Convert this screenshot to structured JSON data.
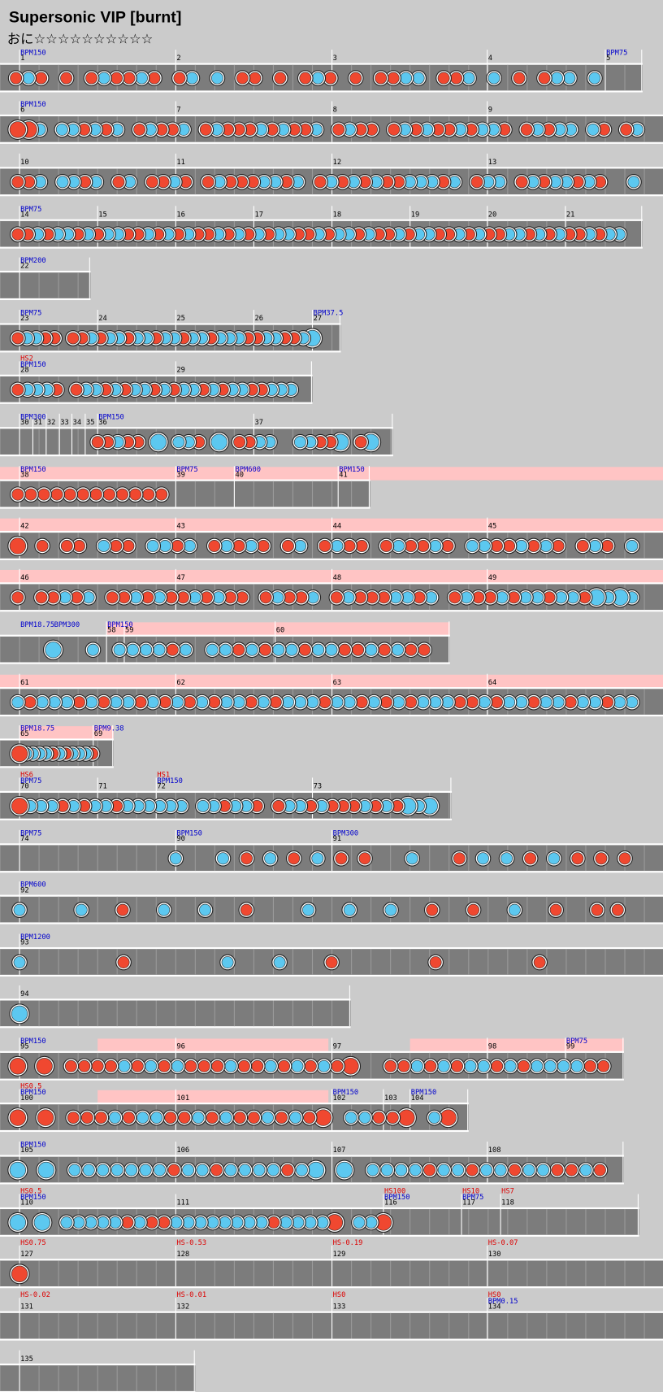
{
  "header": {
    "title": "Supersonic VIP [burnt]",
    "difficulty": "おに",
    "stars": "☆☆☆☆☆☆☆☆☆☆"
  },
  "rows": [
    {
      "measures": [
        "1",
        "2",
        "3",
        "4",
        "5"
      ],
      "bpm": [
        "BPM150",
        "BPM75"
      ],
      "hs": []
    },
    {
      "measures": [
        "6",
        "7",
        "8",
        "9"
      ],
      "bpm": [
        "BPM150"
      ],
      "hs": []
    },
    {
      "measures": [
        "10",
        "11",
        "12",
        "13"
      ],
      "bpm": [],
      "hs": []
    },
    {
      "measures": [
        "14",
        "15",
        "16",
        "17",
        "18",
        "19",
        "20",
        "21"
      ],
      "bpm": [
        "BPM75"
      ],
      "hs": []
    },
    {
      "measures": [
        "22"
      ],
      "bpm": [
        "BPM200"
      ],
      "hs": []
    },
    {
      "measures": [
        "23",
        "24",
        "25",
        "26",
        "27"
      ],
      "bpm": [
        "BPM75",
        "BPM37.5"
      ],
      "hs": []
    },
    {
      "measures": [
        "28",
        "29"
      ],
      "bpm": [
        "BPM150"
      ],
      "hs": [
        "HS2"
      ]
    },
    {
      "measures": [
        "30",
        "31",
        "32",
        "33",
        "34",
        "35",
        "36",
        "37"
      ],
      "bpm": [
        "BPM300",
        "BPM150"
      ],
      "hs": []
    },
    {
      "measures": [
        "38",
        "39",
        "40",
        "41"
      ],
      "bpm": [
        "BPM150",
        "BPM75",
        "BPM600",
        "BPM150"
      ],
      "hs": []
    },
    {
      "measures": [
        "42",
        "43",
        "44",
        "45"
      ],
      "bpm": [],
      "hs": []
    },
    {
      "measures": [
        "46",
        "47",
        "48",
        "49"
      ],
      "bpm": [],
      "hs": []
    },
    {
      "measures": [
        "58",
        "59",
        "60"
      ],
      "bpm": [
        "BPM18.75",
        "BPM300",
        "BPM150"
      ],
      "hs": []
    },
    {
      "measures": [
        "61",
        "62",
        "63",
        "64"
      ],
      "bpm": [],
      "hs": []
    },
    {
      "measures": [
        "65",
        "69"
      ],
      "bpm": [
        "BPM18.75",
        "BPM9.38"
      ],
      "hs": []
    },
    {
      "measures": [
        "70",
        "71",
        "72",
        "73"
      ],
      "bpm": [
        "BPM75",
        "BPM150"
      ],
      "hs": [
        "HS6",
        "HS1"
      ]
    },
    {
      "measures": [
        "74",
        "90",
        "91"
      ],
      "bpm": [
        "BPM75",
        "BPM150",
        "BPM300"
      ],
      "hs": []
    },
    {
      "measures": [
        "92"
      ],
      "bpm": [
        "BPM600"
      ],
      "hs": []
    },
    {
      "measures": [
        "93"
      ],
      "bpm": [
        "BPM1200"
      ],
      "hs": []
    },
    {
      "measures": [
        "94"
      ],
      "bpm": [],
      "hs": []
    },
    {
      "measures": [
        "95",
        "96",
        "97",
        "98",
        "99"
      ],
      "bpm": [
        "BPM150",
        "BPM75"
      ],
      "hs": []
    },
    {
      "measures": [
        "100",
        "101",
        "102",
        "103",
        "104"
      ],
      "bpm": [
        "BPM150",
        "BPM150",
        "BPM150"
      ],
      "hs": [
        "HS0.5"
      ]
    },
    {
      "measures": [
        "105",
        "106",
        "107",
        "108"
      ],
      "bpm": [
        "BPM150"
      ],
      "hs": []
    },
    {
      "measures": [
        "110",
        "111",
        "116",
        "117",
        "118"
      ],
      "bpm": [
        "BPM150",
        "BPM150",
        "BPM75"
      ],
      "hs": [
        "HS0.5",
        "HS100",
        "HS10",
        "HS7"
      ]
    },
    {
      "measures": [
        "127",
        "128",
        "129",
        "130"
      ],
      "bpm": [],
      "hs": [
        "HS0.75",
        "HS-0.53",
        "HS-0.19",
        "HS-0.07"
      ]
    },
    {
      "measures": [
        "131",
        "132",
        "133",
        "134"
      ],
      "bpm": [
        "BPM0.15"
      ],
      "hs": [
        "HS-0.02",
        "HS-0.01",
        "HS0",
        "HS0"
      ]
    },
    {
      "measures": [
        "135"
      ],
      "bpm": [],
      "hs": []
    }
  ]
}
